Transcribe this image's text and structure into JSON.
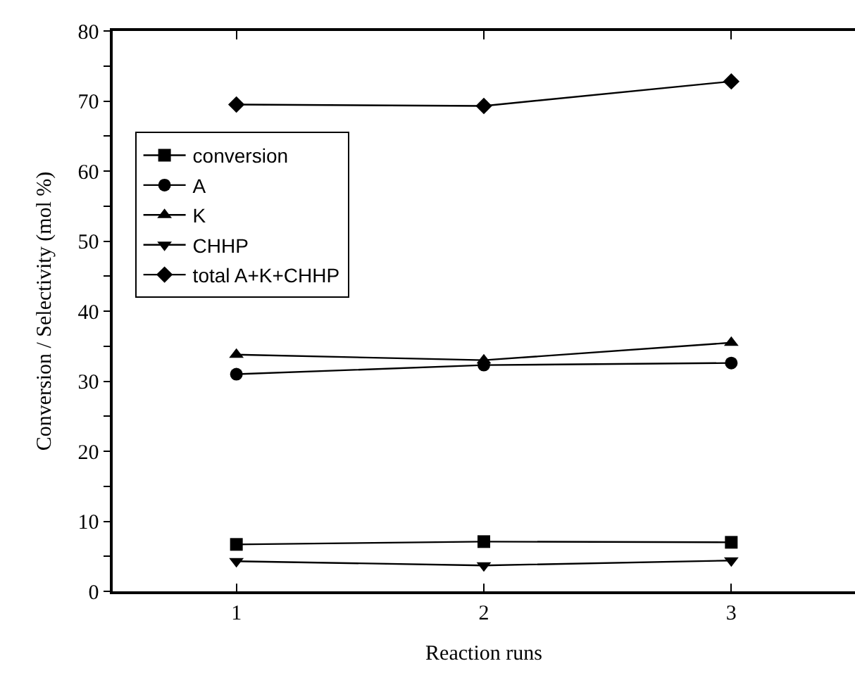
{
  "chart_data": {
    "type": "line",
    "xlabel": "Reaction runs",
    "ylabel": "Conversion / Selectivity (mol %)",
    "x": [
      1,
      2,
      3
    ],
    "series": [
      {
        "name": "conversion",
        "color": "#000000",
        "marker": "square",
        "values": [
          6.7,
          7.1,
          7.0
        ]
      },
      {
        "name": "A",
        "color": "#000000",
        "marker": "circle",
        "values": [
          31.0,
          32.3,
          32.6
        ]
      },
      {
        "name": "K",
        "color": "#000000",
        "marker": "triangle",
        "values": [
          33.8,
          33.0,
          35.5
        ]
      },
      {
        "name": "CHHP",
        "color": "#000000",
        "marker": "triangle-down",
        "values": [
          4.3,
          3.7,
          4.4
        ]
      },
      {
        "name": "total A+K+CHHP",
        "color": "#000000",
        "marker": "diamond",
        "values": [
          69.5,
          69.3,
          72.8
        ]
      }
    ],
    "xlim": [
      0.5,
      3.5
    ],
    "xticks": [
      1,
      2,
      3
    ],
    "ylim": [
      0,
      80
    ],
    "yticks": [
      0,
      {
        "value": 5,
        "label": null
      },
      10,
      {
        "value": 15,
        "label": null
      },
      20,
      {
        "value": 25,
        "label": null
      },
      30,
      {
        "value": 35,
        "label": null
      },
      40,
      {
        "value": 45,
        "label": null
      },
      50,
      {
        "value": 55,
        "label": null
      },
      60,
      {
        "value": 65,
        "label": null
      },
      70,
      {
        "value": 75,
        "label": null
      },
      80
    ],
    "legend": "top left",
    "line_style": "solid"
  }
}
